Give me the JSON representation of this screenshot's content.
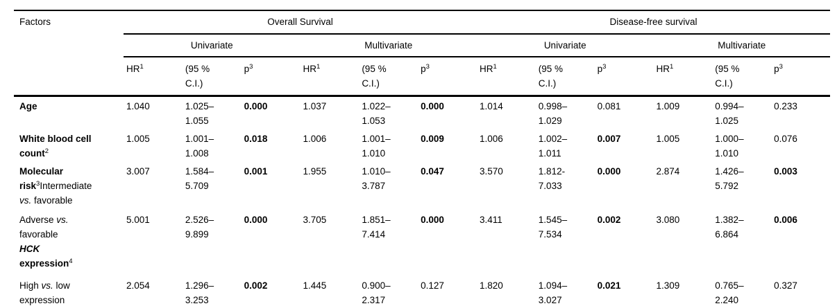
{
  "table": {
    "header": {
      "factors": "Factors",
      "groups": [
        {
          "label": "Overall Survival"
        },
        {
          "label": "Disease-free survival"
        }
      ],
      "subgroups": [
        "Univariate",
        "Multivariate",
        "Univariate",
        "Multivariate"
      ],
      "columns": {
        "hr": "HR",
        "hr_sup": "1",
        "ci_line1": "(95 %",
        "ci_line2": "C.I.)",
        "p": "p",
        "p_sup": "3"
      }
    },
    "rows": [
      {
        "factor": {
          "label": "Age"
        },
        "os_uni": {
          "hr": "1.040",
          "ci1": "1.025–",
          "ci2": "1.055",
          "p": "0.000",
          "p_bold": true
        },
        "os_multi": {
          "hr": "1.037",
          "ci1": "1.022–",
          "ci2": "1.053",
          "p": "0.000",
          "p_bold": true
        },
        "dfs_uni": {
          "hr": "1.014",
          "ci1": "0.998–",
          "ci2": "1.029",
          "p": "0.081",
          "p_bold": false
        },
        "dfs_multi": {
          "hr": "1.009",
          "ci1": "0.994–",
          "ci2": "1.025",
          "p": "0.233",
          "p_bold": false
        }
      },
      {
        "factor": {
          "line1": "White blood cell",
          "line2": "count",
          "sup": "2"
        },
        "os_uni": {
          "hr": "1.005",
          "ci1": "1.001–",
          "ci2": "1.008",
          "p": "0.018",
          "p_bold": true
        },
        "os_multi": {
          "hr": "1.006",
          "ci1": "1.001–",
          "ci2": "1.010",
          "p": "0.009",
          "p_bold": true
        },
        "dfs_uni": {
          "hr": "1.006",
          "ci1": "1.002–",
          "ci2": "1.011",
          "p": "0.007",
          "p_bold": true
        },
        "dfs_multi": {
          "hr": "1.005",
          "ci1": "1.000–",
          "ci2": "1.010",
          "p": "0.076",
          "p_bold": false
        }
      },
      {
        "factor": {
          "line1": "Molecular",
          "line2a": "risk",
          "line2_sup": "3",
          "line2b": "Intermediate",
          "line3a": "vs.",
          "line3b": " favorable"
        },
        "os_uni": {
          "hr": "3.007",
          "ci1": "1.584–",
          "ci2": "5.709",
          "p": "0.001",
          "p_bold": true
        },
        "os_multi": {
          "hr": "1.955",
          "ci1": "1.010–",
          "ci2": "3.787",
          "p": "0.047",
          "p_bold": true
        },
        "dfs_uni": {
          "hr": "3.570",
          "ci1": "1.812-",
          "ci2": "7.033",
          "p": "0.000",
          "p_bold": true
        },
        "dfs_multi": {
          "hr": "2.874",
          "ci1": "1.426–",
          "ci2": "5.792",
          "p": "0.003",
          "p_bold": true
        }
      },
      {
        "factor": {
          "line1a": "Adverse ",
          "line1b": "vs.",
          "line2": "favorable",
          "line3": "HCK",
          "line4a": "expression",
          "line4_sup": "4"
        },
        "os_uni": {
          "hr": "5.001",
          "ci1": "2.526–",
          "ci2": "9.899",
          "p": "0.000",
          "p_bold": true
        },
        "os_multi": {
          "hr": "3.705",
          "ci1": "1.851–",
          "ci2": "7.414",
          "p": "0.000",
          "p_bold": true
        },
        "dfs_uni": {
          "hr": "3.411",
          "ci1": "1.545–",
          "ci2": "7.534",
          "p": "0.002",
          "p_bold": true
        },
        "dfs_multi": {
          "hr": "3.080",
          "ci1": "1.382–",
          "ci2": "6.864",
          "p": "0.006",
          "p_bold": true
        }
      },
      {
        "factor": {
          "line1a": "High ",
          "line1b": "vs.",
          "line1c": " low",
          "line2": "expression"
        },
        "os_uni": {
          "hr": "2.054",
          "ci1": "1.296–",
          "ci2": "3.253",
          "p": "0.002",
          "p_bold": true
        },
        "os_multi": {
          "hr": "1.445",
          "ci1": "0.900–",
          "ci2": "2.317",
          "p": "0.127",
          "p_bold": false
        },
        "dfs_uni": {
          "hr": "1.820",
          "ci1": "1.094–",
          "ci2": "3.027",
          "p": "0.021",
          "p_bold": true
        },
        "dfs_multi": {
          "hr": "1.309",
          "ci1": "0.765–",
          "ci2": "2.240",
          "p": "0.327",
          "p_bold": false
        }
      }
    ]
  }
}
